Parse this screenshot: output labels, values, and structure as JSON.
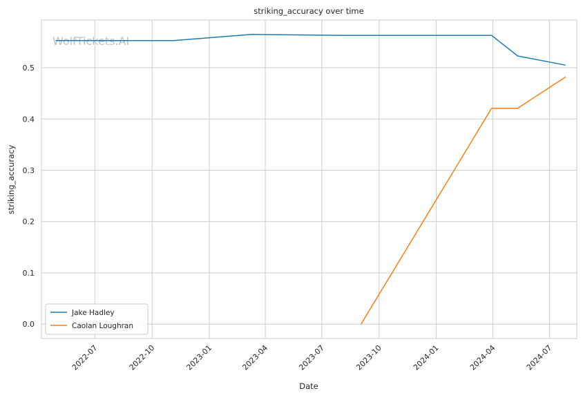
{
  "chart_data": {
    "type": "line",
    "title": "striking_accuracy over time",
    "xlabel": "Date",
    "ylabel": "striking_accuracy",
    "watermark": "WolfTickets.AI",
    "x_ticks": [
      "2022-07",
      "2022-10",
      "2023-01",
      "2023-04",
      "2023-07",
      "2023-10",
      "2024-01",
      "2024-04",
      "2024-07"
    ],
    "y_ticks": [
      "0.0",
      "0.1",
      "0.2",
      "0.3",
      "0.4",
      "0.5"
    ],
    "xlim": [
      "2022-04-06",
      "2024-08-14"
    ],
    "ylim": [
      -0.028,
      0.593
    ],
    "grid": true,
    "legend_position": "lower-left",
    "series": [
      {
        "name": "Jake Hadley",
        "color": "#1f77b4",
        "points": [
          {
            "x": "2022-04-29",
            "y": 0.553
          },
          {
            "x": "2022-11-05",
            "y": 0.553
          },
          {
            "x": "2023-03-11",
            "y": 0.565
          },
          {
            "x": "2023-08-05",
            "y": 0.563
          },
          {
            "x": "2024-03-30",
            "y": 0.563
          },
          {
            "x": "2024-05-11",
            "y": 0.523
          },
          {
            "x": "2024-07-27",
            "y": 0.505
          }
        ]
      },
      {
        "name": "Caolan Loughran",
        "color": "#ff7f0e",
        "points": [
          {
            "x": "2023-09-02",
            "y": 0.0
          },
          {
            "x": "2024-03-30",
            "y": 0.421
          },
          {
            "x": "2024-05-11",
            "y": 0.421
          },
          {
            "x": "2024-07-27",
            "y": 0.482
          }
        ]
      }
    ]
  }
}
